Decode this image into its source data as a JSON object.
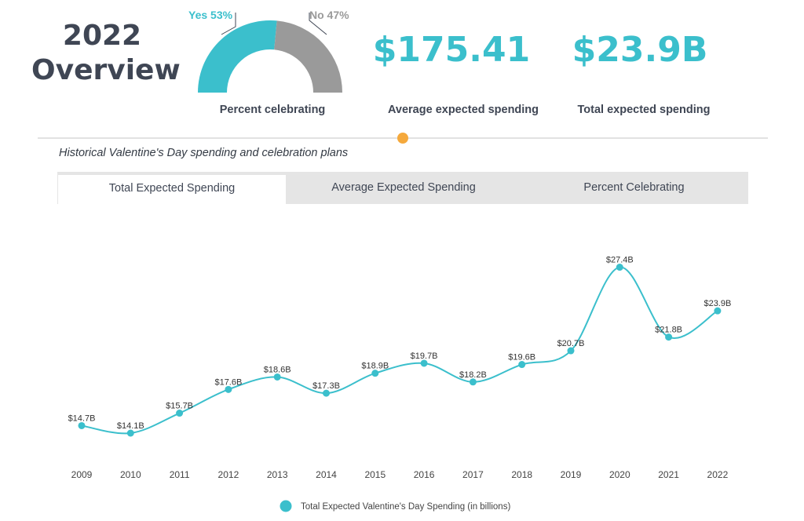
{
  "header": {
    "title_line1": "2022",
    "title_line2": "Overview"
  },
  "gauge": {
    "yes_label": "Yes 53%",
    "no_label": "No 47%",
    "yes_percent": 53,
    "caption": "Percent celebrating",
    "colors": {
      "yes": "#3bbfcc",
      "no": "#9a9a9a"
    }
  },
  "metrics": [
    {
      "value": "$175.41",
      "label": "Average expected spending"
    },
    {
      "value": "$23.9B",
      "label": "Total expected spending"
    }
  ],
  "subtitle": "Historical Valentine's Day spending and celebration plans",
  "tabs": [
    {
      "label": "Total Expected Spending",
      "active": true
    },
    {
      "label": "Average Expected Spending",
      "active": false
    },
    {
      "label": "Percent Celebrating",
      "active": false
    }
  ],
  "colors": {
    "accent": "#3bbfcc",
    "marker": "#f5a93c"
  },
  "chart_data": {
    "type": "line",
    "x": [
      "2009",
      "2010",
      "2011",
      "2012",
      "2013",
      "2014",
      "2015",
      "2016",
      "2017",
      "2018",
      "2019",
      "2020",
      "2021",
      "2022"
    ],
    "series": [
      {
        "name": "Total Expected Valentine's Day Spending (in billions)",
        "values": [
          14.7,
          14.1,
          15.7,
          17.6,
          18.6,
          17.3,
          18.9,
          19.7,
          18.2,
          19.6,
          20.7,
          27.4,
          21.8,
          23.9
        ],
        "labels": [
          "$14.7B",
          "$14.1B",
          "$15.7B",
          "$17.6B",
          "$18.6B",
          "$17.3B",
          "$18.9B",
          "$19.7B",
          "$18.2B",
          "$19.6B",
          "$20.7B",
          "$27.4B",
          "$21.8B",
          "$23.9B"
        ]
      }
    ],
    "curve": "smooth",
    "legend": "bottom",
    "grid": false,
    "color": "#3bbfcc"
  }
}
